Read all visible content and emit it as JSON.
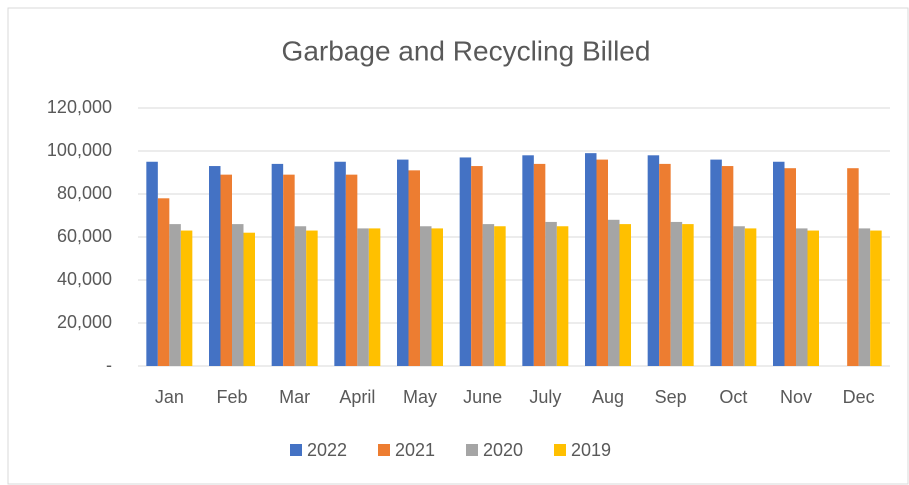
{
  "chart_data": {
    "type": "bar",
    "title": "Garbage and Recycling Billed",
    "categories": [
      "Jan",
      "Feb",
      "Mar",
      "April",
      "May",
      "June",
      "July",
      "Aug",
      "Sep",
      "Oct",
      "Nov",
      "Dec"
    ],
    "series": [
      {
        "name": "2022",
        "color": "#4472c4",
        "values": [
          95000,
          93000,
          94000,
          95000,
          96000,
          97000,
          98000,
          99000,
          98000,
          96000,
          95000,
          null
        ]
      },
      {
        "name": "2021",
        "color": "#ed7d31",
        "values": [
          78000,
          89000,
          89000,
          89000,
          91000,
          93000,
          94000,
          96000,
          94000,
          93000,
          92000,
          92000
        ]
      },
      {
        "name": "2020",
        "color": "#a5a5a5",
        "values": [
          66000,
          66000,
          65000,
          64000,
          65000,
          66000,
          67000,
          68000,
          67000,
          65000,
          64000,
          64000
        ]
      },
      {
        "name": "2019",
        "color": "#ffc000",
        "values": [
          63000,
          62000,
          63000,
          64000,
          64000,
          65000,
          65000,
          66000,
          66000,
          64000,
          63000,
          63000
        ]
      }
    ],
    "ylim": [
      0,
      120000
    ],
    "yticks": [
      {
        "value": 0,
        "label": "-"
      },
      {
        "value": 20000,
        "label": "20,000"
      },
      {
        "value": 40000,
        "label": "40,000"
      },
      {
        "value": 60000,
        "label": "60,000"
      },
      {
        "value": 80000,
        "label": "80,000"
      },
      {
        "value": 100000,
        "label": "100,000"
      },
      {
        "value": 120000,
        "label": "120,000"
      }
    ],
    "grid": true,
    "legend": "bottom"
  }
}
